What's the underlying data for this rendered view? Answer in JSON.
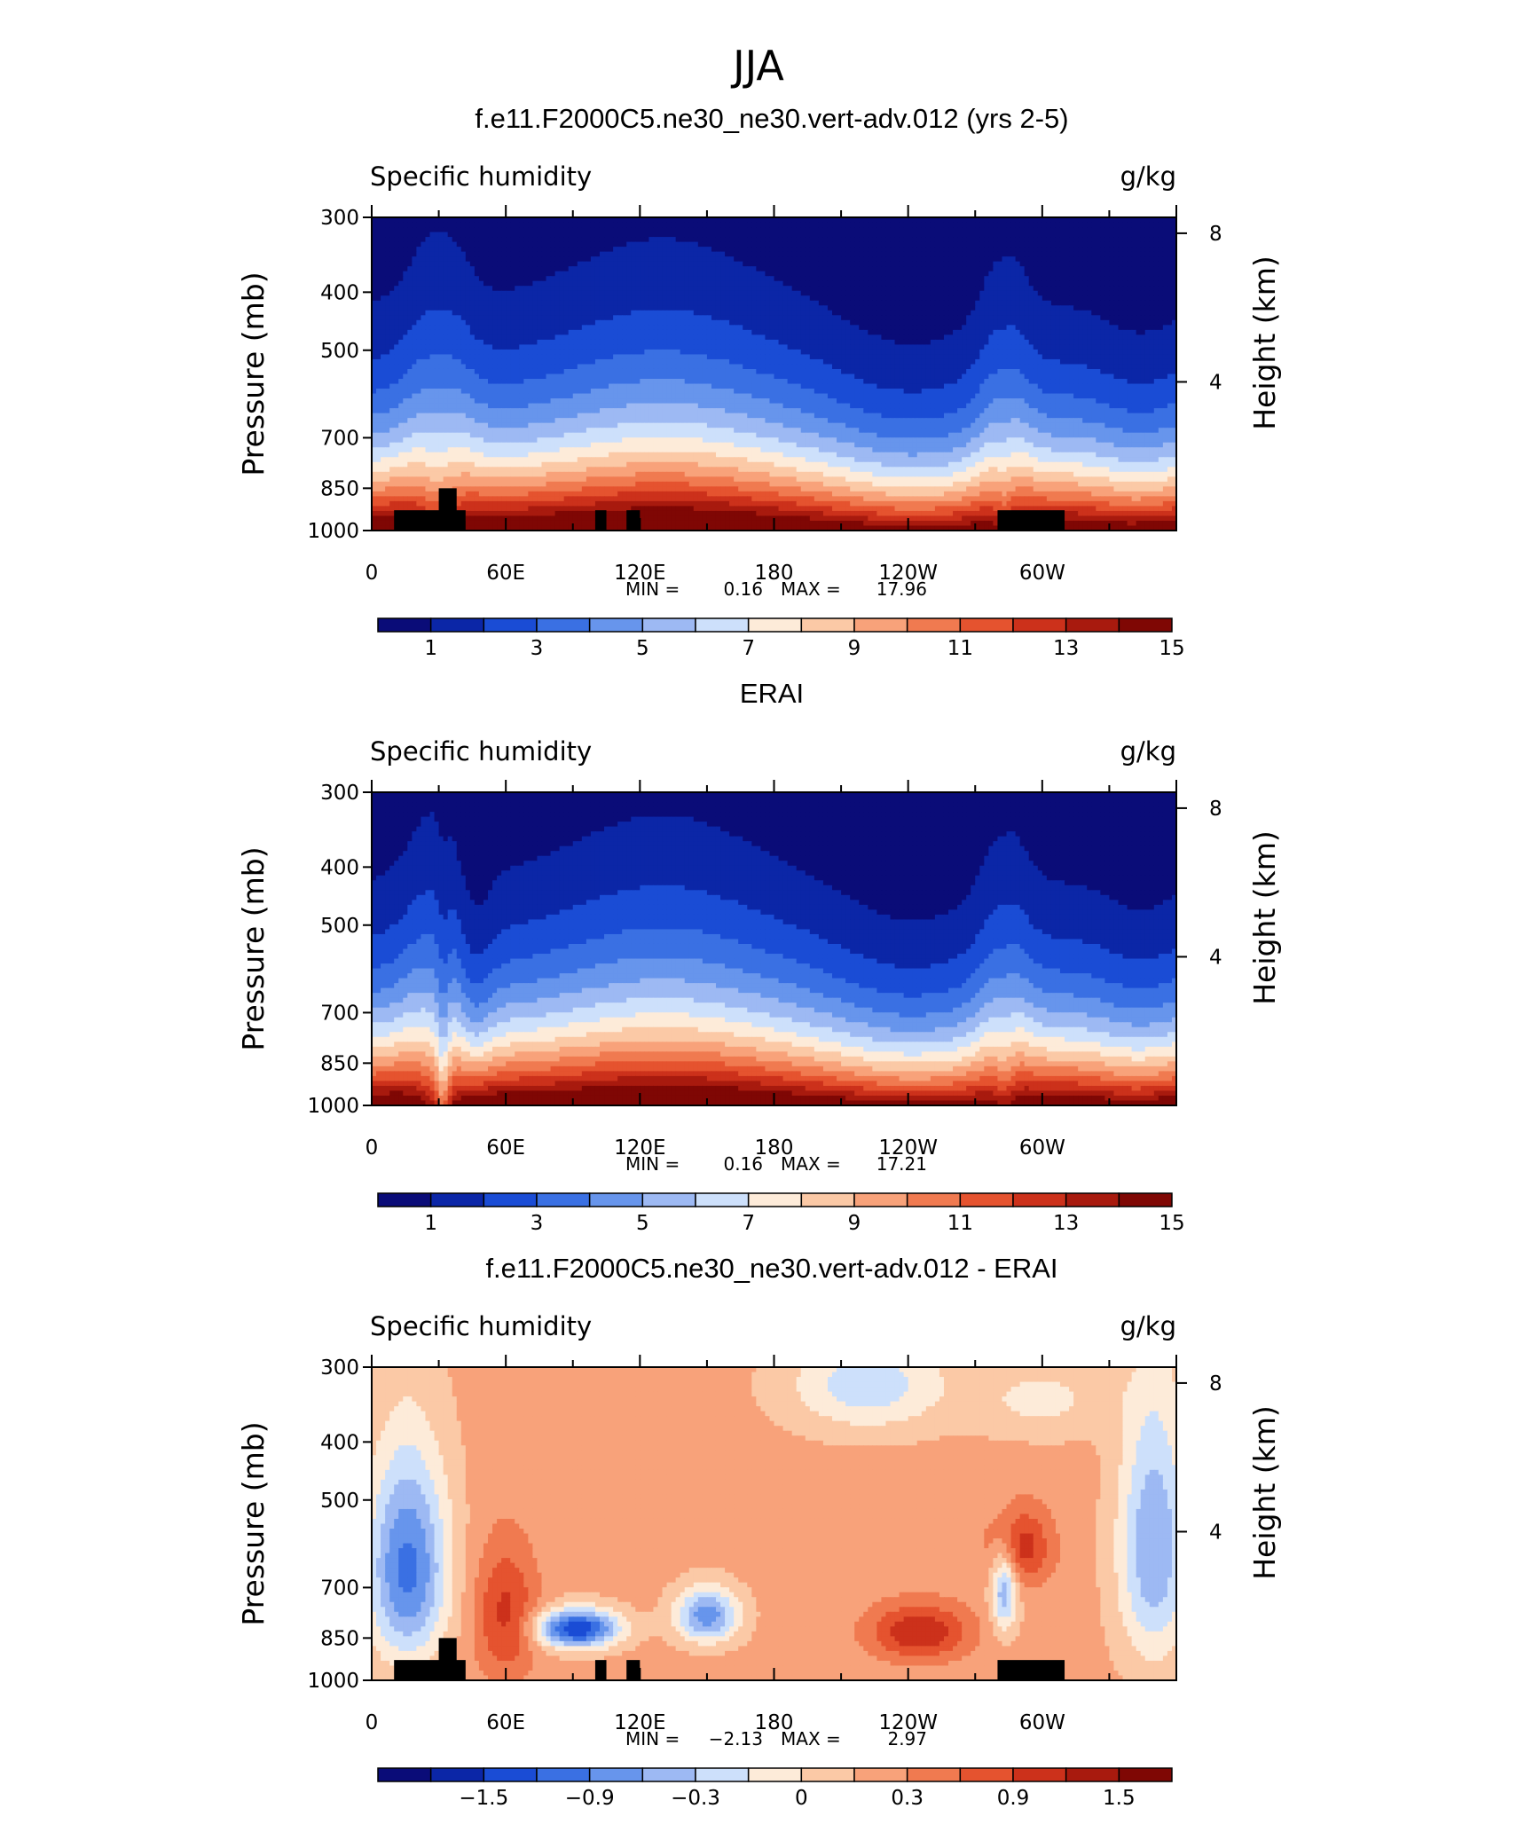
{
  "figure_title": "JJA",
  "chart_data": [
    {
      "type": "heatmap",
      "title": "f.e11.F2000C5.ne30_ne30.vert-adv.012 (yrs 2-5)",
      "left_label": "Specific humidity",
      "right_label": "g/kg",
      "ylabel": "Pressure (mb)",
      "y2label": "Height (km)",
      "x_ticks": [
        "0",
        "60E",
        "120E",
        "180",
        "120W",
        "60W"
      ],
      "x_tick_lon": [
        0,
        60,
        120,
        180,
        240,
        300
      ],
      "xlim": [
        0,
        360
      ],
      "y_ticks": [
        "300",
        "400",
        "500",
        "700",
        "850",
        "1000"
      ],
      "y_tick_values": [
        300,
        400,
        500,
        700,
        850,
        1000
      ],
      "ylim": [
        1000,
        300
      ],
      "y2_ticks": [
        "8",
        "4"
      ],
      "y2_tick_values": [
        8,
        4
      ],
      "min_label": "MIN =",
      "min_value": "0.16",
      "max_label": "MAX =",
      "max_value": "17.96",
      "field": "model",
      "colorbar_labels": [
        "1",
        "3",
        "5",
        "7",
        "9",
        "11",
        "13",
        "15"
      ],
      "colors": [
        "#0a0c78",
        "#0b26a7",
        "#1a4cd5",
        "#3a70e3",
        "#6795ec",
        "#9db9f3",
        "#cde0fb",
        "#fdebd9",
        "#fbc9a6",
        "#f8a27a",
        "#f07a50",
        "#e5532f",
        "#cc311b",
        "#a81a0e",
        "#7f0704"
      ]
    },
    {
      "type": "heatmap",
      "title": "ERAI",
      "left_label": "Specific humidity",
      "right_label": "g/kg",
      "ylabel": "Pressure (mb)",
      "y2label": "Height (km)",
      "x_ticks": [
        "0",
        "60E",
        "120E",
        "180",
        "120W",
        "60W"
      ],
      "x_tick_lon": [
        0,
        60,
        120,
        180,
        240,
        300
      ],
      "xlim": [
        0,
        360
      ],
      "y_ticks": [
        "300",
        "400",
        "500",
        "700",
        "850",
        "1000"
      ],
      "y_tick_values": [
        300,
        400,
        500,
        700,
        850,
        1000
      ],
      "ylim": [
        1000,
        300
      ],
      "y2_ticks": [
        "8",
        "4"
      ],
      "y2_tick_values": [
        8,
        4
      ],
      "min_label": "MIN =",
      "min_value": "0.16",
      "max_label": "MAX =",
      "max_value": "17.21",
      "field": "obs",
      "colorbar_labels": [
        "1",
        "3",
        "5",
        "7",
        "9",
        "11",
        "13",
        "15"
      ],
      "colors": [
        "#0a0c78",
        "#0b26a7",
        "#1a4cd5",
        "#3a70e3",
        "#6795ec",
        "#9db9f3",
        "#cde0fb",
        "#fdebd9",
        "#fbc9a6",
        "#f8a27a",
        "#f07a50",
        "#e5532f",
        "#cc311b",
        "#a81a0e",
        "#7f0704"
      ]
    },
    {
      "type": "heatmap",
      "title": "f.e11.F2000C5.ne30_ne30.vert-adv.012 - ERAI",
      "left_label": "Specific humidity",
      "right_label": "g/kg",
      "ylabel": "Pressure (mb)",
      "y2label": "Height (km)",
      "x_ticks": [
        "0",
        "60E",
        "120E",
        "180",
        "120W",
        "60W"
      ],
      "x_tick_lon": [
        0,
        60,
        120,
        180,
        240,
        300
      ],
      "xlim": [
        0,
        360
      ],
      "y_ticks": [
        "300",
        "400",
        "500",
        "700",
        "850",
        "1000"
      ],
      "y_tick_values": [
        300,
        400,
        500,
        700,
        850,
        1000
      ],
      "ylim": [
        1000,
        300
      ],
      "y2_ticks": [
        "8",
        "4"
      ],
      "y2_tick_values": [
        8,
        4
      ],
      "min_label": "MIN =",
      "min_value": "−2.13",
      "max_label": "MAX =",
      "max_value": "2.97",
      "field": "diff",
      "colorbar_labels": [
        "−1.5",
        "−0.9",
        "−0.3",
        "0",
        "0.3",
        "0.9",
        "1.5"
      ],
      "colors": [
        "#0a0c78",
        "#0b26a7",
        "#1a4cd5",
        "#3a70e3",
        "#6795ec",
        "#9db9f3",
        "#cde0fb",
        "#fdebd9",
        "#fbc9a6",
        "#f8a27a",
        "#f07a50",
        "#e5532f",
        "#cc311b",
        "#a81a0e",
        "#7f0704"
      ]
    }
  ]
}
